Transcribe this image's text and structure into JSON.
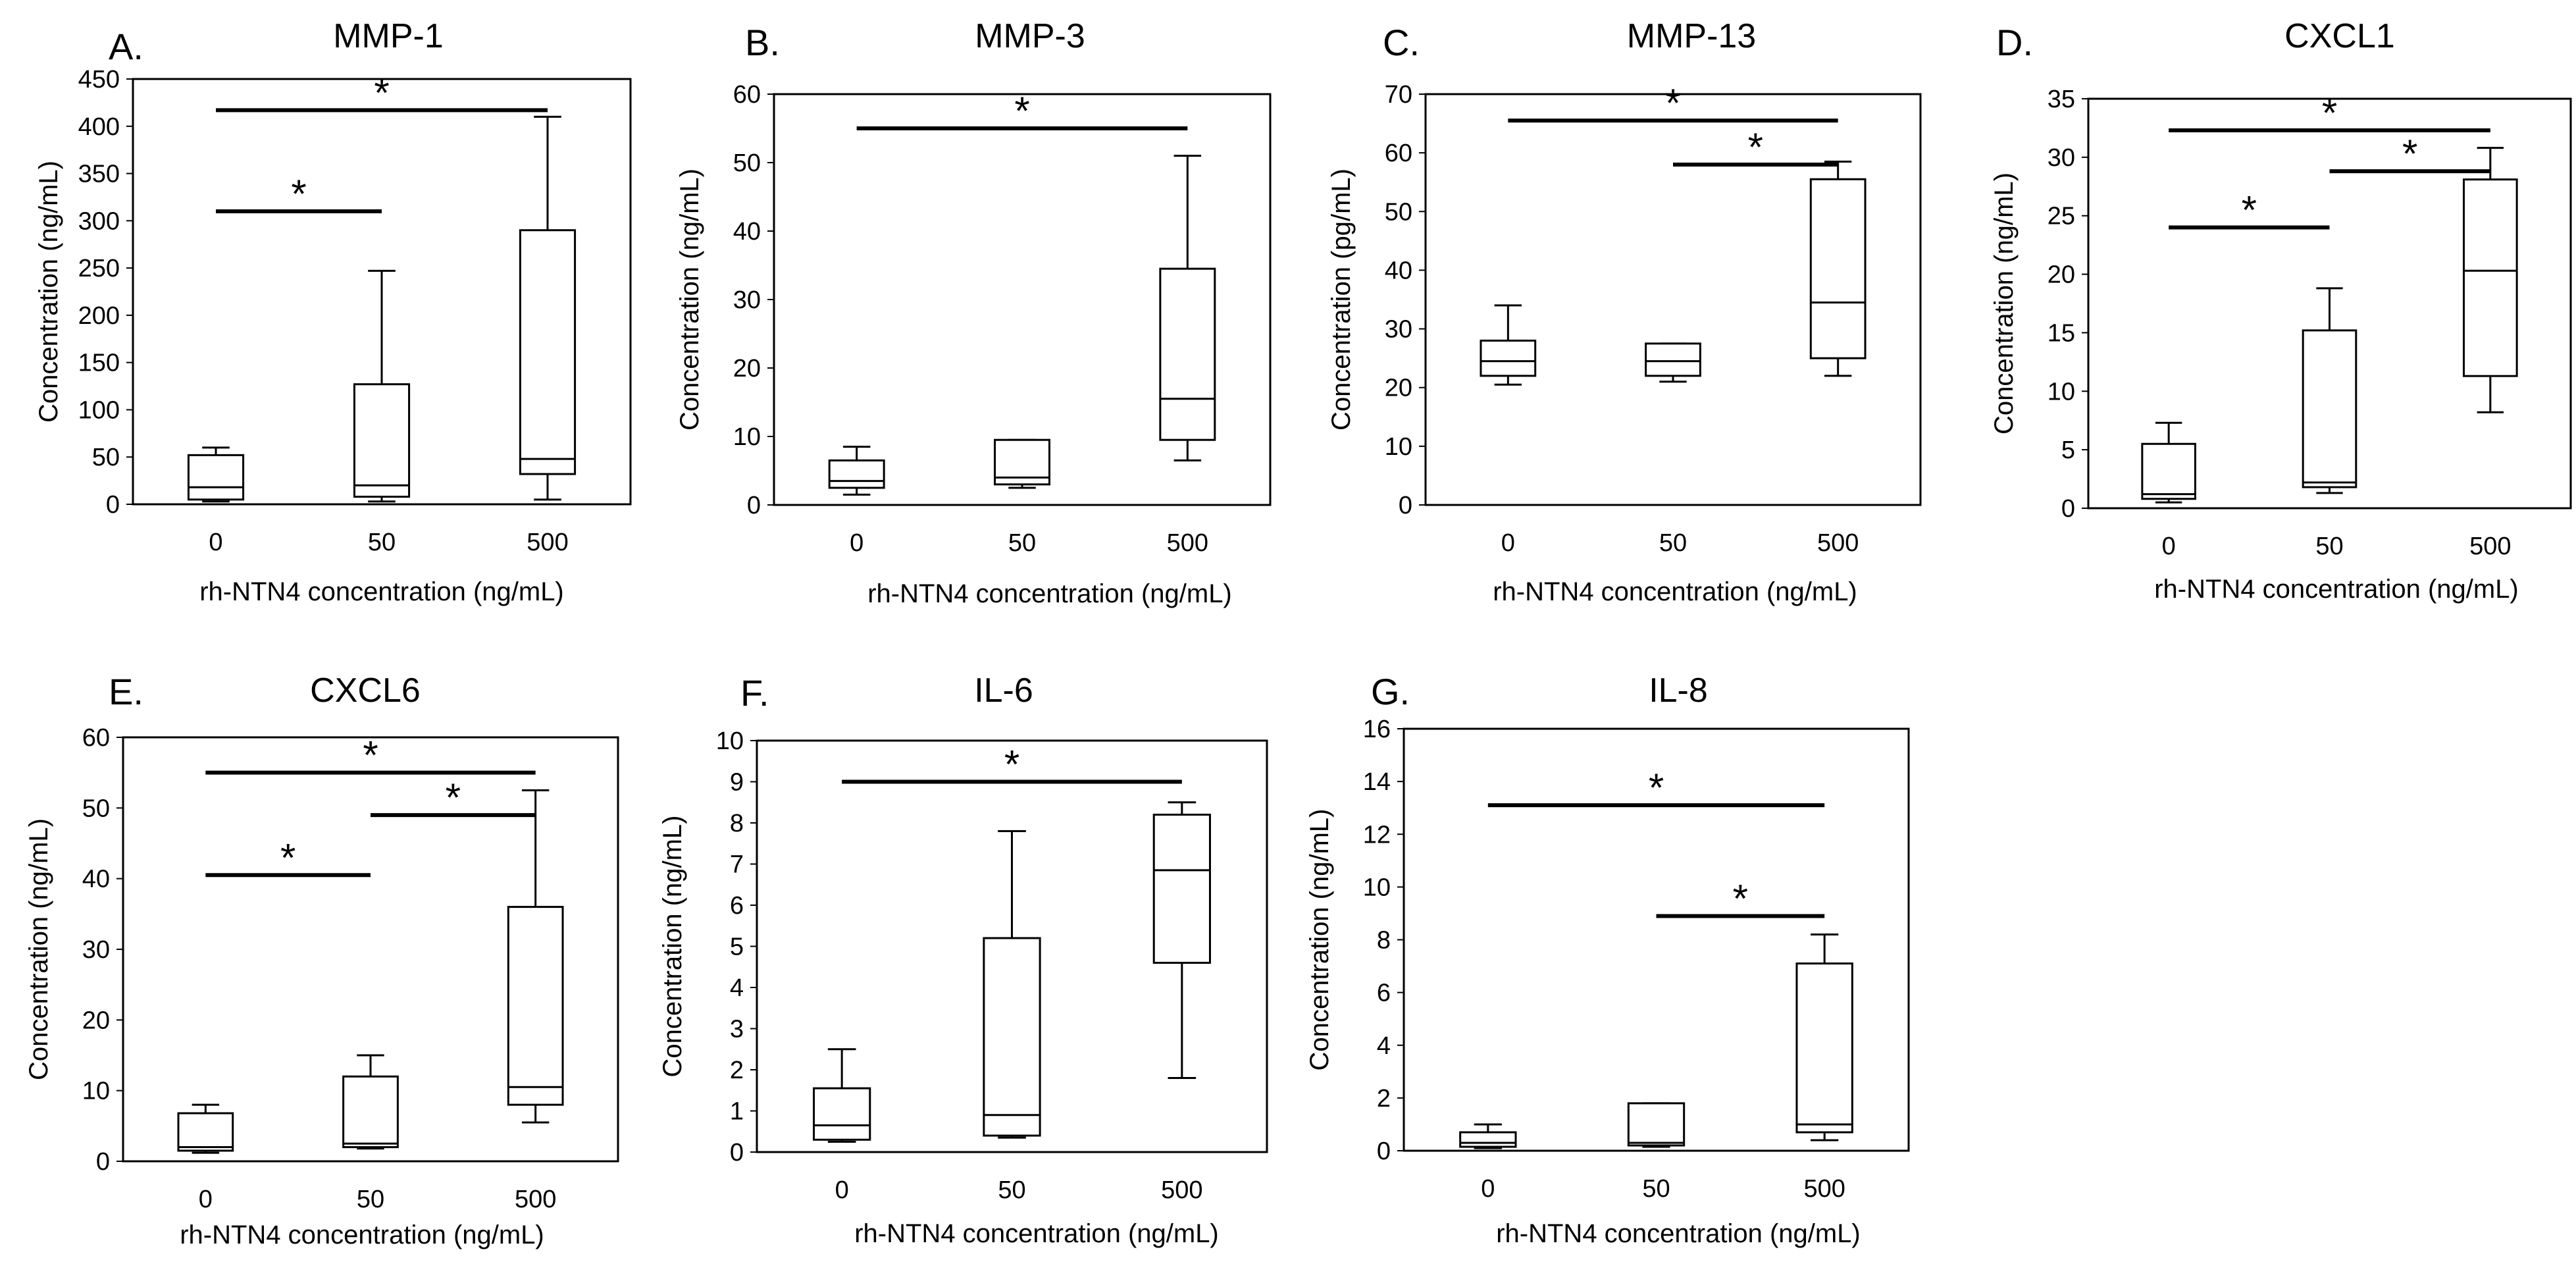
{
  "figure": {
    "shared_xlabel": "rh-NTN4 concentration (ng/mL)"
  },
  "chart_data": [
    {
      "id": "A",
      "panel_label": "A.",
      "type": "box",
      "title": "MMP-1",
      "xlabel": "rh-NTN4 concentration (ng/mL)",
      "ylabel": "Concentration (ng/mL)",
      "categories": [
        "0",
        "50",
        "500"
      ],
      "ylim": [
        0,
        450
      ],
      "yticks": [
        0,
        50,
        100,
        150,
        200,
        250,
        300,
        350,
        400,
        450
      ],
      "boxes": [
        {
          "whisker_low": 3,
          "q1": 5,
          "median": 18,
          "q3": 52,
          "whisker_high": 60
        },
        {
          "whisker_low": 3,
          "q1": 8,
          "median": 20,
          "q3": 127,
          "whisker_high": 247
        },
        {
          "whisker_low": 5,
          "q1": 32,
          "median": 48,
          "q3": 290,
          "whisker_high": 410
        }
      ],
      "significance": [
        {
          "from": 0,
          "to": 2,
          "y": 417,
          "label": "*"
        },
        {
          "from": 0,
          "to": 1,
          "y": 310,
          "label": "*"
        }
      ]
    },
    {
      "id": "B",
      "panel_label": "B.",
      "type": "box",
      "title": "MMP-3",
      "xlabel": "rh-NTN4 concentration (ng/mL)",
      "ylabel": "Concentration (ng/mL)",
      "categories": [
        "0",
        "50",
        "500"
      ],
      "ylim": [
        0,
        60
      ],
      "yticks": [
        0,
        10,
        20,
        30,
        40,
        50,
        60
      ],
      "boxes": [
        {
          "whisker_low": 1.5,
          "q1": 2.5,
          "median": 3.5,
          "q3": 6.5,
          "whisker_high": 8.5
        },
        {
          "whisker_low": 2.5,
          "q1": 3.0,
          "median": 4.0,
          "q3": 9.5,
          "whisker_high": 9.5
        },
        {
          "whisker_low": 6.5,
          "q1": 9.5,
          "median": 15.5,
          "q3": 34.5,
          "whisker_high": 51
        }
      ],
      "significance": [
        {
          "from": 0,
          "to": 2,
          "y": 55,
          "label": "*"
        }
      ]
    },
    {
      "id": "C",
      "panel_label": "C.",
      "type": "box",
      "title": "MMP-13",
      "xlabel": "rh-NTN4 concentration (ng/mL)",
      "ylabel": "Concentration (pg/mL)",
      "categories": [
        "0",
        "50",
        "500"
      ],
      "ylim": [
        0,
        70
      ],
      "yticks": [
        0,
        10,
        20,
        30,
        40,
        50,
        60,
        70
      ],
      "boxes": [
        {
          "whisker_low": 20.5,
          "q1": 22,
          "median": 24.5,
          "q3": 28,
          "whisker_high": 34
        },
        {
          "whisker_low": 21,
          "q1": 22,
          "median": 24.5,
          "q3": 27.5,
          "whisker_high": 27.5
        },
        {
          "whisker_low": 22,
          "q1": 25,
          "median": 34.5,
          "q3": 55.5,
          "whisker_high": 58.5
        }
      ],
      "significance": [
        {
          "from": 0,
          "to": 2,
          "y": 65.5,
          "label": "*"
        },
        {
          "from": 1,
          "to": 2,
          "y": 58,
          "label": "*"
        }
      ]
    },
    {
      "id": "D",
      "panel_label": "D.",
      "type": "box",
      "title": "CXCL1",
      "xlabel": "rh-NTN4 concentration (ng/mL)",
      "ylabel": "Concentration (ng/mL)",
      "categories": [
        "0",
        "50",
        "500"
      ],
      "ylim": [
        0,
        35
      ],
      "yticks": [
        0,
        5,
        10,
        15,
        20,
        25,
        30,
        35
      ],
      "boxes": [
        {
          "whisker_low": 0.5,
          "q1": 0.8,
          "median": 1.2,
          "q3": 5.5,
          "whisker_high": 7.3
        },
        {
          "whisker_low": 1.3,
          "q1": 1.8,
          "median": 2.2,
          "q3": 15.2,
          "whisker_high": 18.8
        },
        {
          "whisker_low": 8.2,
          "q1": 11.3,
          "median": 20.3,
          "q3": 28.1,
          "whisker_high": 30.8
        }
      ],
      "significance": [
        {
          "from": 0,
          "to": 2,
          "y": 32.3,
          "label": "*"
        },
        {
          "from": 1,
          "to": 2,
          "y": 28.8,
          "label": "*"
        },
        {
          "from": 0,
          "to": 1,
          "y": 24,
          "label": "*"
        }
      ]
    },
    {
      "id": "E",
      "panel_label": "E.",
      "type": "box",
      "title": "CXCL6",
      "xlabel": "rh-NTN4 concentration (ng/mL)",
      "ylabel": "Concentration (ng/mL)",
      "categories": [
        "0",
        "50",
        "500"
      ],
      "ylim": [
        0,
        60
      ],
      "yticks": [
        0,
        10,
        20,
        30,
        40,
        50,
        60
      ],
      "boxes": [
        {
          "whisker_low": 1.2,
          "q1": 1.5,
          "median": 2.0,
          "q3": 6.8,
          "whisker_high": 8.0
        },
        {
          "whisker_low": 1.8,
          "q1": 2.0,
          "median": 2.5,
          "q3": 12.0,
          "whisker_high": 15.0
        },
        {
          "whisker_low": 5.5,
          "q1": 8.0,
          "median": 10.5,
          "q3": 36.0,
          "whisker_high": 52.5
        }
      ],
      "significance": [
        {
          "from": 0,
          "to": 2,
          "y": 55,
          "label": "*"
        },
        {
          "from": 1,
          "to": 2,
          "y": 49,
          "label": "*"
        },
        {
          "from": 0,
          "to": 1,
          "y": 40.5,
          "label": "*"
        }
      ]
    },
    {
      "id": "F",
      "panel_label": "F.",
      "type": "box",
      "title": "IL-6",
      "xlabel": "rh-NTN4 concentration (ng/mL)",
      "ylabel": "Concentration  (ng/mL)",
      "categories": [
        "0",
        "50",
        "500"
      ],
      "ylim": [
        0,
        10
      ],
      "yticks": [
        0,
        1,
        2,
        3,
        4,
        5,
        6,
        7,
        8,
        9,
        10
      ],
      "boxes": [
        {
          "whisker_low": 0.25,
          "q1": 0.3,
          "median": 0.65,
          "q3": 1.55,
          "whisker_high": 2.5
        },
        {
          "whisker_low": 0.35,
          "q1": 0.4,
          "median": 0.9,
          "q3": 5.2,
          "whisker_high": 7.8
        },
        {
          "whisker_low": 1.8,
          "q1": 4.6,
          "median": 6.85,
          "q3": 8.2,
          "whisker_high": 8.5
        }
      ],
      "significance": [
        {
          "from": 0,
          "to": 2,
          "y": 9.0,
          "label": "*"
        }
      ]
    },
    {
      "id": "G",
      "panel_label": "G.",
      "type": "box",
      "title": "IL-8",
      "xlabel": "rh-NTN4 concentration (ng/mL)",
      "ylabel": "Concentration (ng/mL)",
      "categories": [
        "0",
        "50",
        "500"
      ],
      "ylim": [
        0,
        16
      ],
      "yticks": [
        0,
        2,
        4,
        6,
        8,
        10,
        12,
        14,
        16
      ],
      "boxes": [
        {
          "whisker_low": 0.1,
          "q1": 0.15,
          "median": 0.3,
          "q3": 0.7,
          "whisker_high": 1.0
        },
        {
          "whisker_low": 0.15,
          "q1": 0.2,
          "median": 0.3,
          "q3": 1.8,
          "whisker_high": 1.8
        },
        {
          "whisker_low": 0.4,
          "q1": 0.7,
          "median": 1.0,
          "q3": 7.1,
          "whisker_high": 8.2
        }
      ],
      "significance": [
        {
          "from": 0,
          "to": 2,
          "y": 13.1,
          "label": "*"
        },
        {
          "from": 1,
          "to": 2,
          "y": 8.9,
          "label": "*"
        }
      ]
    }
  ]
}
